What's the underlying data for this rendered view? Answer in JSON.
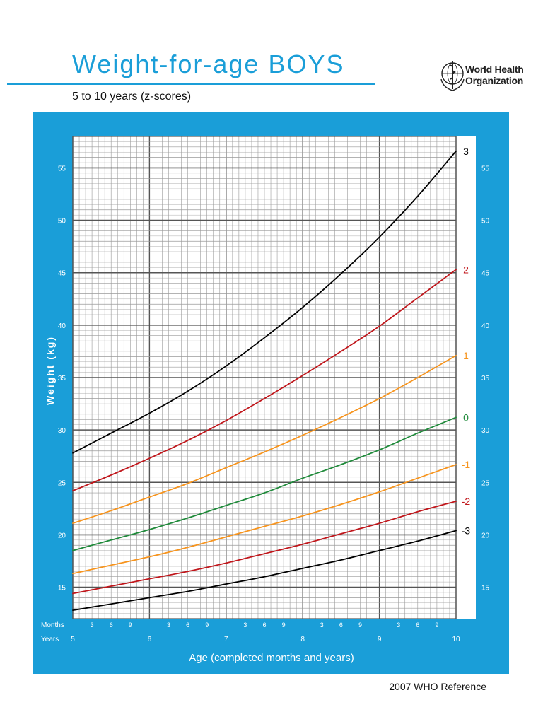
{
  "header": {
    "title": "Weight-for-age  BOYS",
    "subtitle": "5 to 10 years (z-scores)",
    "org_line1": "World Health",
    "org_line2": "Organization"
  },
  "footer": {
    "reference": "2007 WHO Reference"
  },
  "colors": {
    "panel": "#1a9ed8",
    "z3": "#000000",
    "z2": "#c0161b",
    "z1": "#f7941d",
    "z0": "#1f8a3a",
    "grid_major": "#555555",
    "grid_minor": "#9a9a9a"
  },
  "chart_data": {
    "type": "line",
    "title": "Weight-for-age  BOYS",
    "subtitle": "5 to 10 years (z-scores)",
    "xlabel": "Age (completed months and years)",
    "ylabel": "Weight (kg)",
    "x_unit": "years",
    "xlim": [
      5,
      10
    ],
    "ylim": [
      12,
      58
    ],
    "y_ticks": [
      15,
      20,
      25,
      30,
      35,
      40,
      45,
      50,
      55
    ],
    "x_year_ticks": [
      5,
      6,
      7,
      8,
      9,
      10
    ],
    "x_month_ticks": [
      3,
      6,
      9
    ],
    "axis_row_labels": {
      "months": "Months",
      "years": "Years"
    },
    "grid": true,
    "x": [
      5,
      5.5,
      6,
      6.5,
      7,
      7.5,
      8,
      8.5,
      9,
      9.5,
      10
    ],
    "series": [
      {
        "name": "3",
        "color": "#000000",
        "values": [
          27.8,
          29.7,
          31.6,
          33.7,
          36.1,
          38.8,
          41.7,
          44.9,
          48.4,
          52.3,
          56.6
        ]
      },
      {
        "name": "2",
        "color": "#c0161b",
        "values": [
          24.2,
          25.7,
          27.3,
          29.0,
          30.9,
          33.0,
          35.2,
          37.5,
          39.9,
          42.6,
          45.3
        ]
      },
      {
        "name": "1",
        "color": "#f7941d",
        "values": [
          21.1,
          22.3,
          23.6,
          24.9,
          26.4,
          27.9,
          29.5,
          31.2,
          33.0,
          35.0,
          37.1
        ]
      },
      {
        "name": "0",
        "color": "#1f8a3a",
        "values": [
          18.5,
          19.5,
          20.5,
          21.6,
          22.8,
          24.0,
          25.4,
          26.7,
          28.1,
          29.7,
          31.2
        ]
      },
      {
        "name": "-1",
        "color": "#f7941d",
        "values": [
          16.3,
          17.1,
          17.9,
          18.8,
          19.8,
          20.8,
          21.8,
          22.9,
          24.1,
          25.4,
          26.7
        ]
      },
      {
        "name": "-2",
        "color": "#c0161b",
        "values": [
          14.4,
          15.1,
          15.8,
          16.5,
          17.3,
          18.2,
          19.1,
          20.1,
          21.1,
          22.2,
          23.2
        ]
      },
      {
        "name": "-3",
        "color": "#000000",
        "values": [
          12.8,
          13.4,
          14.0,
          14.6,
          15.3,
          16.0,
          16.8,
          17.6,
          18.5,
          19.4,
          20.4
        ]
      }
    ]
  }
}
